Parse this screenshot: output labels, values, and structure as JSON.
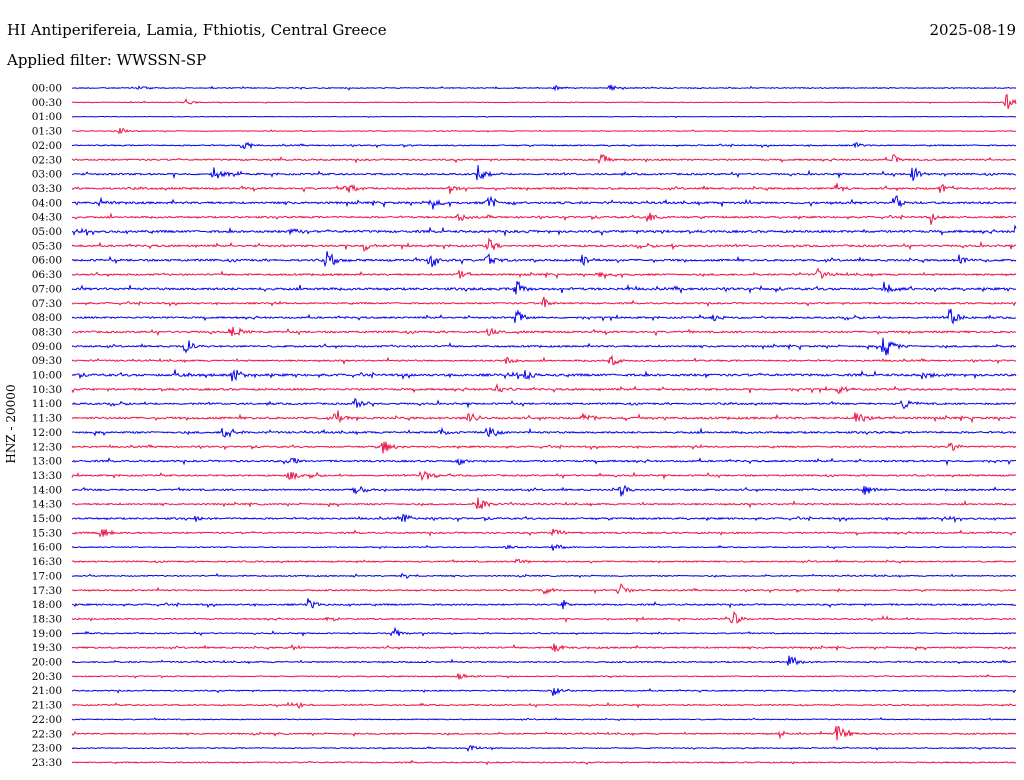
{
  "header": {
    "station": "HI Antiperifereia, Lamia, Fthiotis, Central Greece",
    "date": "2025-08-19",
    "filter": "Applied filter: WWSSN-SP"
  },
  "chart_data": {
    "type": "helicorder",
    "ylabel": "HNZ - 20000",
    "trace_colors": [
      "#0000ee",
      "#ee1144"
    ],
    "rows": [
      "00:00",
      "00:30",
      "01:00",
      "01:30",
      "02:00",
      "02:30",
      "03:00",
      "03:30",
      "04:00",
      "04:30",
      "05:00",
      "05:30",
      "06:00",
      "06:30",
      "07:00",
      "07:30",
      "08:00",
      "08:30",
      "09:00",
      "09:30",
      "10:00",
      "10:30",
      "11:00",
      "11:30",
      "12:00",
      "12:30",
      "13:00",
      "13:30",
      "14:00",
      "14:30",
      "15:00",
      "15:30",
      "16:00",
      "16:30",
      "17:00",
      "17:30",
      "18:00",
      "18:30",
      "19:00",
      "19:30",
      "20:00",
      "20:30",
      "21:00",
      "21:30",
      "22:00",
      "22:30",
      "23:00",
      "23:30"
    ],
    "row_noise": [
      0.6,
      0.4,
      0.3,
      0.5,
      0.7,
      0.9,
      1.0,
      1.1,
      1.2,
      1.0,
      1.3,
      1.1,
      1.2,
      1.0,
      1.3,
      0.9,
      1.0,
      1.1,
      1.0,
      0.9,
      1.3,
      1.1,
      1.0,
      1.2,
      1.1,
      0.9,
      1.0,
      0.9,
      1.0,
      0.9,
      1.0,
      0.9,
      0.6,
      0.8,
      0.7,
      0.8,
      0.9,
      0.8,
      0.7,
      0.9,
      0.8,
      0.6,
      0.7,
      0.7,
      0.6,
      0.8,
      0.6,
      0.7
    ],
    "events": [
      [
        [
          0.07,
          0.3
        ],
        [
          0.51,
          0.3
        ],
        [
          0.57,
          0.3
        ]
      ],
      [
        [
          0.99,
          0.8
        ],
        [
          0.12,
          0.3
        ]
      ],
      [],
      [
        [
          0.05,
          0.3
        ]
      ],
      [
        [
          0.18,
          0.6
        ],
        [
          0.83,
          0.3
        ]
      ],
      [
        [
          0.56,
          0.7
        ],
        [
          0.87,
          0.6
        ]
      ],
      [
        [
          0.15,
          0.7
        ],
        [
          0.43,
          1.0
        ],
        [
          0.89,
          0.8
        ]
      ],
      [
        [
          0.29,
          0.6
        ],
        [
          0.4,
          0.5
        ],
        [
          0.81,
          0.6
        ],
        [
          0.92,
          0.5
        ]
      ],
      [
        [
          0.03,
          0.5
        ],
        [
          0.38,
          0.8
        ],
        [
          0.44,
          0.9
        ],
        [
          0.87,
          0.8
        ]
      ],
      [
        [
          0.41,
          0.5
        ],
        [
          0.61,
          0.6
        ],
        [
          0.91,
          0.5
        ]
      ],
      [
        [
          0.23,
          0.6
        ],
        [
          1.0,
          0.7
        ]
      ],
      [
        [
          0.31,
          0.6
        ],
        [
          0.44,
          0.8
        ]
      ],
      [
        [
          0.27,
          1.2
        ],
        [
          0.38,
          1.0
        ],
        [
          0.44,
          0.7
        ],
        [
          0.54,
          0.7
        ],
        [
          0.94,
          0.6
        ]
      ],
      [
        [
          0.41,
          0.5
        ],
        [
          0.56,
          0.5
        ],
        [
          0.79,
          0.6
        ]
      ],
      [
        [
          0.47,
          0.9
        ],
        [
          0.86,
          0.8
        ]
      ],
      [
        [
          0.5,
          0.6
        ]
      ],
      [
        [
          0.47,
          0.9
        ],
        [
          0.68,
          0.5
        ],
        [
          0.93,
          1.0
        ]
      ],
      [
        [
          0.17,
          0.7
        ],
        [
          0.44,
          0.4
        ]
      ],
      [
        [
          0.12,
          0.7
        ],
        [
          0.86,
          1.3
        ]
      ],
      [
        [
          0.46,
          0.5
        ],
        [
          0.57,
          0.6
        ]
      ],
      [
        [
          0.11,
          0.6
        ],
        [
          0.17,
          0.9
        ],
        [
          0.48,
          0.6
        ],
        [
          0.9,
          0.5
        ]
      ],
      [
        [
          0.45,
          0.5
        ],
        [
          0.81,
          0.7
        ]
      ],
      [
        [
          0.3,
          0.6
        ],
        [
          0.88,
          0.7
        ]
      ],
      [
        [
          0.28,
          0.8
        ],
        [
          0.42,
          0.7
        ],
        [
          0.54,
          0.6
        ],
        [
          0.83,
          0.8
        ]
      ],
      [
        [
          0.16,
          0.8
        ],
        [
          0.39,
          0.5
        ],
        [
          0.44,
          0.7
        ]
      ],
      [
        [
          0.33,
          0.8
        ],
        [
          0.93,
          0.5
        ]
      ],
      [
        [
          0.23,
          0.6
        ],
        [
          0.41,
          0.4
        ]
      ],
      [
        [
          0.23,
          0.6
        ],
        [
          0.37,
          0.8
        ]
      ],
      [
        [
          0.3,
          0.7
        ],
        [
          0.58,
          0.8
        ],
        [
          0.84,
          0.6
        ]
      ],
      [
        [
          0.43,
          0.8
        ]
      ],
      [
        [
          0.35,
          0.6
        ],
        [
          0.13,
          0.3
        ]
      ],
      [
        [
          0.03,
          0.7
        ],
        [
          0.51,
          0.6
        ]
      ],
      [
        [
          0.46,
          0.4
        ],
        [
          0.51,
          0.4
        ]
      ],
      [
        [
          0.47,
          0.5
        ]
      ],
      [
        [
          0.35,
          0.4
        ]
      ],
      [
        [
          0.58,
          0.8
        ],
        [
          0.5,
          0.4
        ]
      ],
      [
        [
          0.25,
          0.6
        ],
        [
          0.52,
          0.5
        ]
      ],
      [
        [
          0.7,
          0.8
        ],
        [
          0.27,
          0.4
        ]
      ],
      [
        [
          0.34,
          0.7
        ]
      ],
      [
        [
          0.23,
          0.6
        ],
        [
          0.51,
          0.5
        ]
      ],
      [
        [
          0.76,
          0.7
        ]
      ],
      [
        [
          0.41,
          0.4
        ]
      ],
      [
        [
          0.51,
          0.6
        ]
      ],
      [
        [
          0.24,
          0.4
        ]
      ],
      [],
      [
        [
          0.81,
          1.3
        ],
        [
          0.75,
          0.4
        ]
      ],
      [
        [
          0.42,
          0.4
        ]
      ],
      []
    ]
  }
}
